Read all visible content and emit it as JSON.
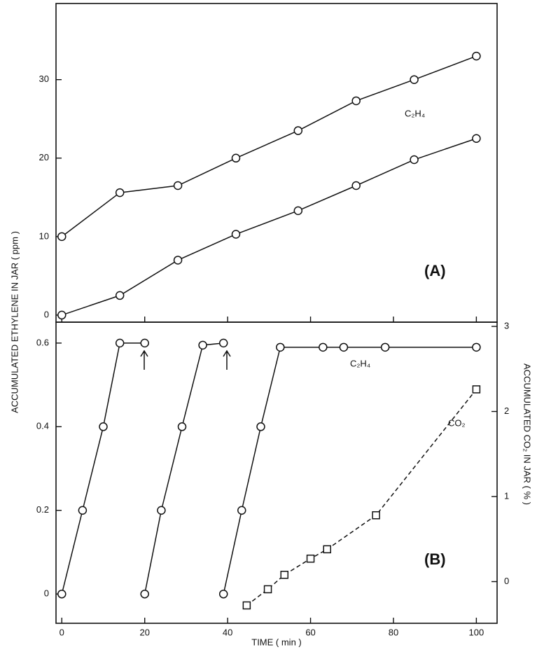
{
  "chart_data": [
    {
      "type": "line",
      "y_label": "ACCUMULATED ETHYLENE IN JAR ( ppm )",
      "annotations": [
        "C₂H₄",
        "(A)"
      ],
      "xlim": [
        -1.4,
        105
      ],
      "xticks": [
        0,
        20,
        40,
        60,
        80,
        100
      ],
      "ylim": [
        -0.9,
        39.7
      ],
      "yticks": [
        0,
        10,
        20,
        30
      ],
      "series": [
        {
          "color": "#111111",
          "marker": "circle",
          "linestyle": "solid",
          "x": [
            0,
            14,
            28,
            42,
            57,
            71,
            85,
            100
          ],
          "values": [
            10,
            15.6,
            16.5,
            20,
            23.5,
            27.3,
            30,
            33
          ]
        },
        {
          "color": "#111111",
          "marker": "circle",
          "linestyle": "solid",
          "x": [
            0,
            14,
            28,
            42,
            57,
            71,
            85,
            100
          ],
          "values": [
            0,
            2.5,
            7,
            10.3,
            13.3,
            16.5,
            19.8,
            22.5
          ]
        }
      ]
    },
    {
      "type": "line",
      "x_label": "TIME ( min )",
      "y2_label": "ACCUMULATED CO₂ IN JAR ( % )",
      "annotations": [
        "C₂H₄",
        "CO₂",
        "(B)"
      ],
      "xlim": [
        -1.4,
        105
      ],
      "xticks": [
        0,
        20,
        40,
        60,
        80,
        100
      ],
      "ylim": [
        -0.07,
        0.65
      ],
      "yticks": [
        0,
        0.2,
        0.4,
        0.6
      ],
      "y2lim": [
        -0.49,
        3.05
      ],
      "y2ticks": [
        0,
        1,
        2,
        3
      ],
      "series": [
        {
          "color": "#111111",
          "marker": "circle",
          "linestyle": "solid",
          "x": [
            0,
            5,
            10,
            14,
            20
          ],
          "values": [
            0,
            0.2,
            0.4,
            0.6,
            0.6
          ]
        },
        {
          "color": "#111111",
          "marker": "circle",
          "linestyle": "solid",
          "x": [
            20,
            24,
            29,
            34,
            39
          ],
          "values": [
            0,
            0.2,
            0.4,
            0.595,
            0.6
          ]
        },
        {
          "color": "#111111",
          "marker": "circle",
          "linestyle": "solid",
          "x": [
            39,
            43.4,
            48,
            52.7,
            63,
            68,
            78,
            100
          ],
          "values": [
            0,
            0.2,
            0.4,
            0.59,
            0.59,
            0.59,
            0.59,
            0.59
          ]
        },
        {
          "color": "#111111",
          "marker": "square",
          "linestyle": "dashed",
          "axis": "y2",
          "x": [
            44.6,
            49.7,
            53.7,
            60,
            64,
            75.8,
            100
          ],
          "values": [
            -0.28,
            -0.09,
            0.08,
            0.27,
            0.38,
            0.78,
            2.26
          ]
        }
      ]
    }
  ]
}
